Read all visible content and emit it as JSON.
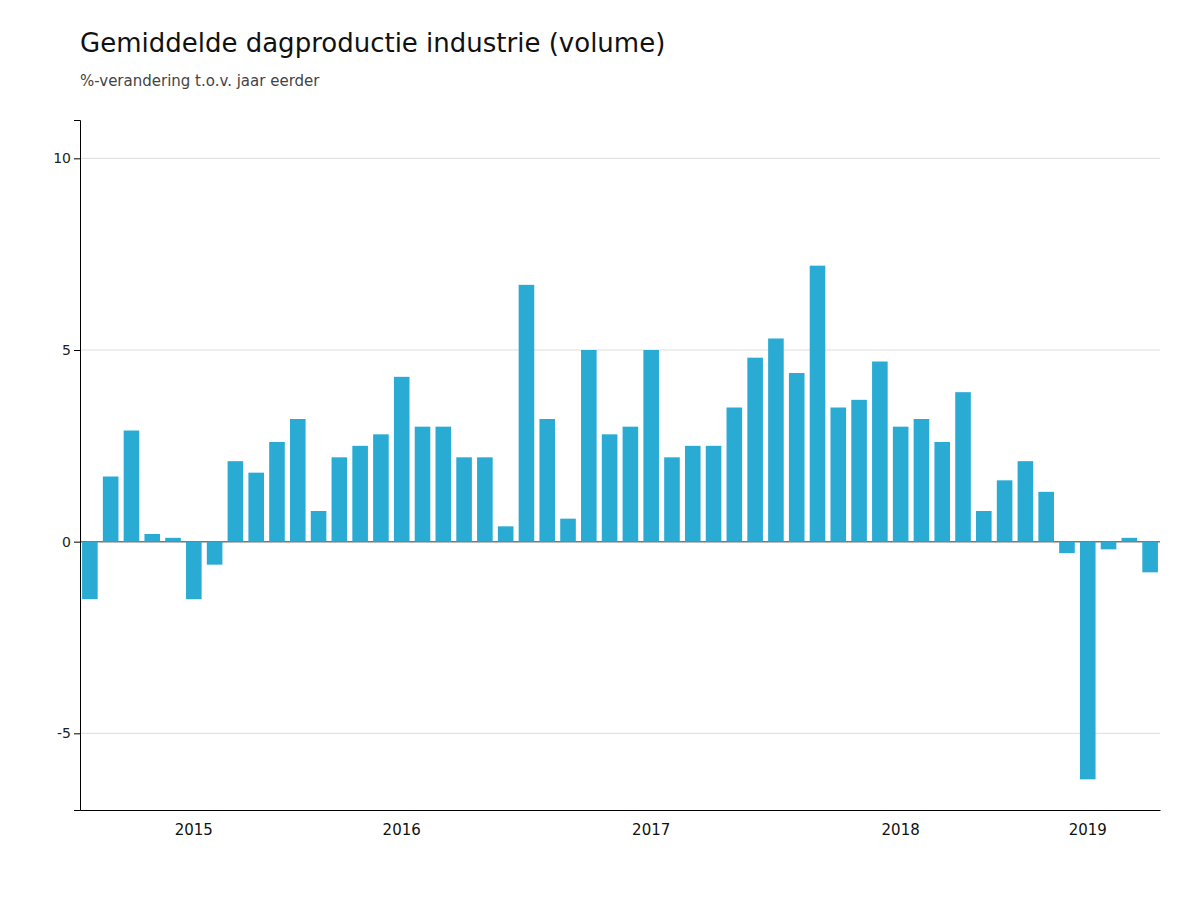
{
  "chart_data": {
    "type": "bar",
    "title": "Gemiddelde dagproductie industrie (volume)",
    "subtitle": "%-verandering t.o.v. jaar eerder",
    "categories": [
      null,
      null,
      null,
      null,
      null,
      "2015",
      null,
      null,
      null,
      null,
      null,
      null,
      null,
      null,
      null,
      "2016",
      null,
      null,
      null,
      null,
      null,
      null,
      null,
      null,
      null,
      null,
      null,
      "2017",
      null,
      null,
      null,
      null,
      null,
      null,
      null,
      null,
      null,
      null,
      null,
      "2018",
      null,
      null,
      null,
      null,
      null,
      null,
      null,
      null,
      "2019",
      null,
      null,
      null
    ],
    "values": [
      -1.5,
      1.7,
      2.9,
      0.2,
      0.1,
      -1.5,
      -0.6,
      2.1,
      1.8,
      2.6,
      3.2,
      0.8,
      2.2,
      2.5,
      2.8,
      4.3,
      3.0,
      3.0,
      2.2,
      2.2,
      0.4,
      6.7,
      3.2,
      0.6,
      5.0,
      2.8,
      3.0,
      5.0,
      2.2,
      2.5,
      2.5,
      3.5,
      4.8,
      5.3,
      4.4,
      7.2,
      3.5,
      3.7,
      4.7,
      3.0,
      3.2,
      2.6,
      3.9,
      0.8,
      1.6,
      2.1,
      1.3,
      -0.3,
      -6.2,
      -0.2,
      0.1,
      -0.8
    ],
    "color": "#29ABD4",
    "ylim": [
      -7,
      11
    ],
    "yticks": [
      -5,
      0,
      5,
      10
    ],
    "grid": true
  }
}
